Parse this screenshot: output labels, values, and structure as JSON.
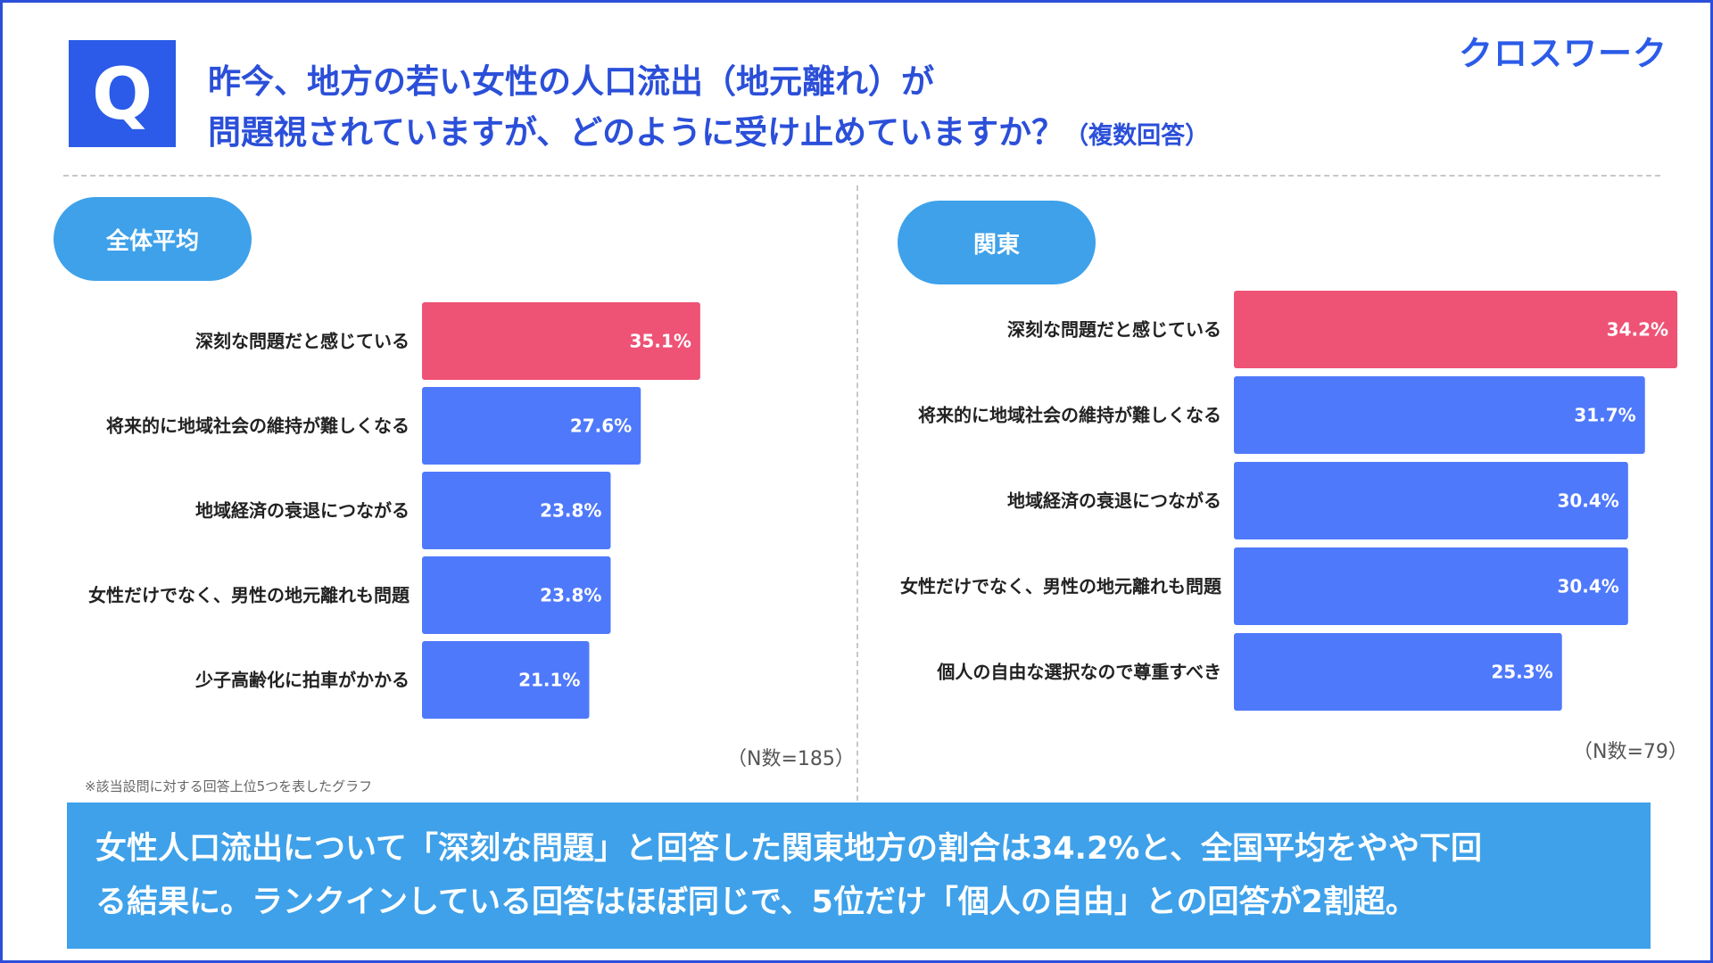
{
  "header": {
    "q_badge": "Q",
    "title_line1": "昨今、地方の若い女性の人口流出（地元離れ）が",
    "title_line2": "問題視されていますが、どのように受け止めていますか？",
    "title_suffix": "（複数回答）",
    "brand": "クロスワーク"
  },
  "colors": {
    "highlight": "#ee5275",
    "bar": "#4f79fb",
    "accent": "#3ea1ea",
    "title": "#2b4fd9"
  },
  "chart_data": [
    {
      "type": "bar",
      "orientation": "horizontal",
      "title": "全体平均",
      "categories": [
        "深刻な問題だと感じている",
        "将来的に地域社会の維持が難しくなる",
        "地域経済の衰退につながる",
        "女性だけでなく、男性の地元離れも問題",
        "少子高齢化に拍車がかかる"
      ],
      "values": [
        35.1,
        27.6,
        23.8,
        23.8,
        21.1
      ],
      "value_labels": [
        "35.1%",
        "27.6%",
        "23.8%",
        "23.8%",
        "21.1%"
      ],
      "unit": "%",
      "n_label": "（N数=185）"
    },
    {
      "type": "bar",
      "orientation": "horizontal",
      "title": "関東",
      "categories": [
        "深刻な問題だと感じている",
        "将来的に地域社会の維持が難しくなる",
        "地域経済の衰退につながる",
        "女性だけでなく、男性の地元離れも問題",
        "個人の自由な選択なので尊重すべき"
      ],
      "values": [
        34.2,
        31.7,
        30.4,
        30.4,
        25.3
      ],
      "value_labels": [
        "34.2%",
        "31.7%",
        "30.4%",
        "30.4%",
        "25.3%"
      ],
      "unit": "%",
      "n_label": "（N数=79）"
    }
  ],
  "footnote": "※該当設問に対する回答上位5つを表したグラフ",
  "summary": {
    "line1": "女性人口流出について「深刻な問題」と回答した関東地方の割合は34.2%と、全国平均をやや下回",
    "line2": "る結果に。ランクインしている回答はほぼ同じで、5位だけ「個人の自由」との回答が2割超。"
  }
}
